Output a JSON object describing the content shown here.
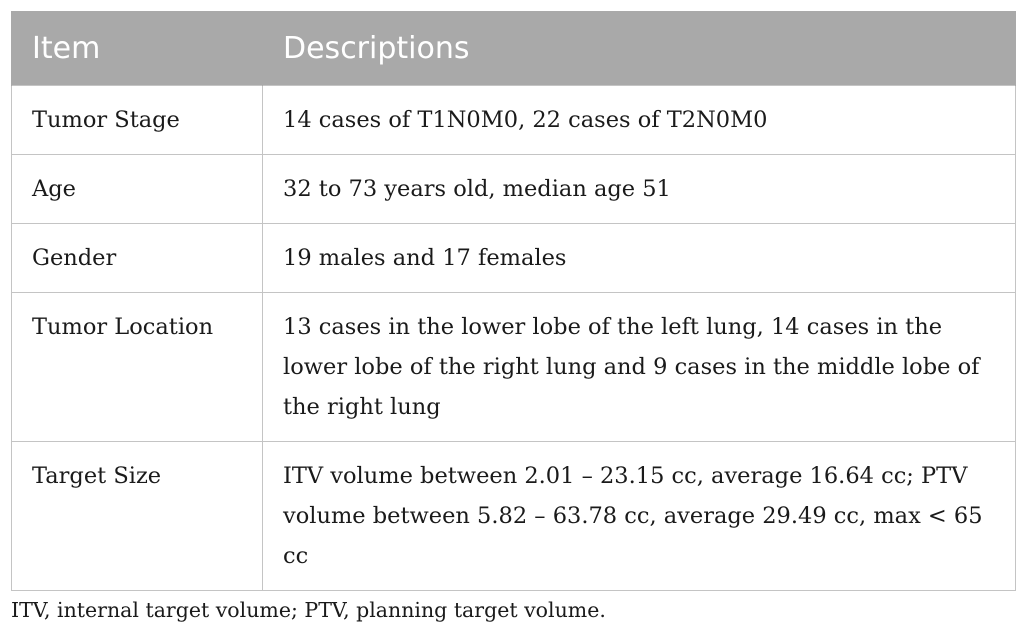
{
  "table": {
    "headers": [
      "Item",
      "Descriptions"
    ],
    "rows": [
      {
        "item": "Tumor Stage",
        "description": "14 cases of T1N0M0, 22 cases of T2N0M0"
      },
      {
        "item": "Age",
        "description": "32 to 73 years old, median age 51"
      },
      {
        "item": "Gender",
        "description": "19 males and 17 females"
      },
      {
        "item": "Tumor Location",
        "description": "13 cases in the lower lobe of the left lung, 14 cases in the lower lobe of the right lung and 9 cases in the middle lobe of the right lung"
      },
      {
        "item": "Target Size",
        "description": "ITV volume between 2.01 – 23.15 cc, average 16.64 cc; PTV volume between 5.82 – 63.78 cc, average 29.49 cc, max < 65 cc"
      }
    ]
  },
  "footnote": "ITV, internal target volume; PTV, planning target volume."
}
